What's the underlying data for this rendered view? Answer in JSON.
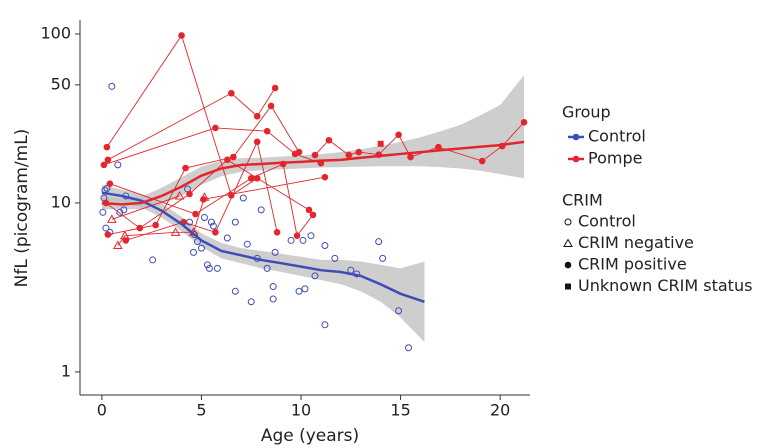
{
  "chart_data": {
    "type": "scatter",
    "x_label": "Age (years)",
    "y_label": "NfL (picogram/mL)",
    "xlim": [
      -1.1,
      21.5
    ],
    "ylim": [
      0.73,
      121
    ],
    "log_y": true,
    "xticks": [
      0,
      5,
      10,
      15,
      20
    ],
    "yticks": [
      1,
      10,
      50,
      100
    ],
    "band_color": "#bdbdbd",
    "legend_group_title": "Group",
    "legend_crim_title": "CRIM",
    "crim_labels": [
      "Control",
      "CRIM negative",
      "CRIM positive",
      "Unknown CRIM status"
    ],
    "crim_markers": [
      "circle-open",
      "triangle-open",
      "circle",
      "square"
    ],
    "series": [
      {
        "name": "Control",
        "color": "#3d4db7",
        "marker": "circle-open",
        "x": [
          0.5,
          0.15,
          0.1,
          0.25,
          0.05,
          0.2,
          0.4,
          0.8,
          0.9,
          1.2,
          1.1,
          2.55,
          4.3,
          4.4,
          4.6,
          4.65,
          4.8,
          5.0,
          5.15,
          5.3,
          5.5,
          5.6,
          5.4,
          5.8,
          6.3,
          6.7,
          6.7,
          7.1,
          7.3,
          7.5,
          7.8,
          8.0,
          8.3,
          8.6,
          8.6,
          8.7,
          9.5,
          9.9,
          10.1,
          10.2,
          10.5,
          10.7,
          11.2,
          11.2,
          11.7,
          12.5,
          12.8,
          13.9,
          14.1,
          14.9,
          15.4
        ],
        "values": [
          49,
          11.9,
          10.7,
          12.2,
          8.8,
          7.1,
          6.7,
          16.8,
          8.8,
          11,
          9.1,
          4.6,
          12.1,
          7.7,
          5.1,
          6.5,
          5.9,
          5.4,
          8.2,
          4.3,
          7.7,
          7.3,
          4.1,
          4.1,
          6.2,
          3.0,
          7.7,
          10.7,
          5.7,
          2.6,
          4.7,
          9.1,
          4.1,
          3.2,
          2.7,
          5.1,
          6.0,
          3.0,
          6.0,
          3.1,
          6.4,
          3.7,
          5.6,
          1.9,
          4.7,
          4.0,
          3.8,
          5.9,
          4.7,
          2.3,
          1.39
        ],
        "fit": {
          "x": [
            0,
            1,
            2,
            3,
            4,
            5,
            6,
            7,
            8,
            9,
            10,
            11,
            12,
            13,
            14,
            15,
            16.2
          ],
          "values": [
            11.5,
            11,
            10.3,
            9,
            7.5,
            6,
            5.2,
            4.9,
            4.6,
            4.4,
            4.2,
            4.0,
            3.9,
            3.7,
            3.3,
            2.9,
            2.6
          ],
          "lower": [
            10.4,
            10.1,
            9.4,
            8.2,
            6.8,
            5.5,
            4.7,
            4.4,
            4.1,
            3.9,
            3.7,
            3.5,
            3.3,
            3.0,
            2.6,
            2.1,
            1.5
          ],
          "upper": [
            12.8,
            12.0,
            11.3,
            9.9,
            8.3,
            6.6,
            5.8,
            5.4,
            5.2,
            5.0,
            4.8,
            4.6,
            4.6,
            4.5,
            4.3,
            4.1,
            4.5
          ]
        }
      },
      {
        "name": "Pompe",
        "color": "#e3262d",
        "subjects": [
          {
            "marker": "circle",
            "x": [
              0.25,
              4.0,
              6.5,
              7.8
            ],
            "values": [
              21.4,
              98,
              11.1,
              14.0
            ]
          },
          {
            "marker": "circle",
            "x": [
              0.3,
              6.5,
              7.8,
              8.7
            ],
            "values": [
              18,
              44.6,
              32.6,
              47.9
            ]
          },
          {
            "marker": "circle",
            "x": [
              0.1,
              5.7,
              8.3,
              9.7,
              11.0
            ],
            "values": [
              16.8,
              27.8,
              26.6,
              19.5,
              17.2
            ]
          },
          {
            "marker": "circle",
            "x": [
              0.3,
              2.7,
              4.2,
              6.6,
              8.5,
              9.9
            ],
            "values": [
              6.5,
              7.4,
              16.1,
              18.7,
              37.5,
              20
            ]
          },
          {
            "marker": "circle",
            "x": [
              1.2,
              4.1,
              5.7,
              7.8,
              8.8
            ],
            "values": [
              6.0,
              7.7,
              6.7,
              23,
              6.7
            ]
          },
          {
            "marker": "circle",
            "x": [
              0.2,
              1.9,
              4.4,
              6.3,
              10.4
            ],
            "values": [
              10,
              7.1,
              11.3,
              18,
              9.1
            ]
          },
          {
            "marker": "circle",
            "x": [
              0.4,
              4.7,
              7.5,
              9.1,
              9.8,
              10.6
            ],
            "values": [
              13,
              8.6,
              14.0,
              17.0,
              6.4,
              8.5
            ]
          },
          {
            "marker": "circle",
            "x": [
              10.7,
              11.4,
              12.4,
              12.9,
              13.9,
              14.9,
              15.5,
              16.9,
              19.1,
              20.1,
              21.2
            ],
            "values": [
              19.2,
              23.5,
              19.2,
              20,
              19.3,
              25.3,
              18.7,
              21.4,
              17.7,
              21.7,
              30
            ]
          },
          {
            "marker": "circle",
            "x": [
              5.1,
              11.2
            ],
            "values": [
              10.5,
              14.2
            ]
          },
          {
            "marker": "triangle-open",
            "x": [
              0.8,
              1.15,
              3.7,
              4.6,
              5.15
            ],
            "values": [
              5.6,
              6.4,
              6.7,
              6.7,
              10.8
            ]
          },
          {
            "marker": "triangle-open",
            "x": [
              0.5,
              3.9
            ],
            "values": [
              8,
              11
            ]
          },
          {
            "marker": "square",
            "x": [
              14.0
            ],
            "values": [
              22.4
            ]
          }
        ],
        "fit": {
          "x": [
            0,
            1,
            2,
            3,
            4,
            5,
            6,
            7,
            8,
            9,
            10,
            11,
            12,
            13,
            14,
            15,
            16,
            17,
            18,
            19,
            20,
            21.2
          ],
          "values": [
            10,
            9.8,
            10,
            11,
            12.5,
            14.5,
            16,
            16.8,
            17,
            17.3,
            17.5,
            17.8,
            18,
            18.5,
            19,
            19.5,
            20,
            20.5,
            21,
            21.5,
            22,
            23
          ],
          "lower": [
            9.2,
            9.2,
            9.2,
            9.8,
            11,
            12.8,
            14.4,
            15.3,
            15.6,
            15.8,
            16,
            16.2,
            16.3,
            16.4,
            16.5,
            16.5,
            16.5,
            16.3,
            16.0,
            15.5,
            14.8,
            14
          ],
          "upper": [
            11,
            10.5,
            10.9,
            12.3,
            14.2,
            16.4,
            17.8,
            18.4,
            18.5,
            18.8,
            19.1,
            19.5,
            20,
            20.8,
            21.8,
            23,
            24.5,
            26.5,
            29,
            33,
            38,
            57
          ]
        }
      }
    ]
  }
}
